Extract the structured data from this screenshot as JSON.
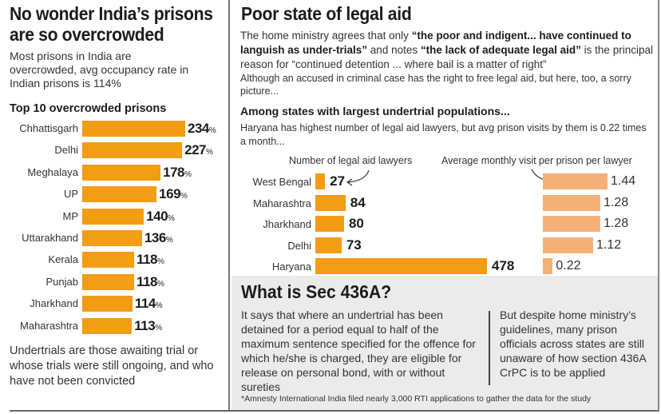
{
  "left_panel": {
    "title_line1": "No wonder India’s prisons",
    "title_line2": "are so overcrowded",
    "subtitle": "Most prisons in India are overcrowded,  avg occupancy rate in Indian prisons is 114%",
    "chart_title": "Top 10 overcrowded prisons",
    "note": "Undertrials are those awaiting trial or whose trials were still ongoing, and who have not been convicted"
  },
  "right_panel": {
    "title": "Poor state of legal aid",
    "para_plain1": "The home ministry agrees that only ",
    "para_bold1": "“the poor and indigent... have continued to languish as under-trials”",
    "para_plain2": " and notes ",
    "para_bold2": "“the lack of adequate legal aid”",
    "para_plain3": " is the principal reason for “continued detention ... where bail is a matter of right”",
    "para2": "Although an accused in criminal case has the right to free legal aid, but here, too, a sorry picture...",
    "subheading": "Among states with largest undertrial populations...",
    "subtext": "Haryana has highest number of legal aid lawyers, but avg prison visits by them is 0.22 times a month...",
    "legend_lawyers": "Number of legal aid lawyers",
    "legend_visits": "Average monthly visit per prison per lawyer"
  },
  "sec436a": {
    "title": "What is Sec 436A?",
    "col1": "It says that where an undertrial has been detained for a period equal to half of the maximum sentence specified for the offence for which he/she is charged, they are eligible for release on personal bond, with or without sureties",
    "col2": "But despite home ministry’s guidelines, many prison officials across states are still unaware of how section 436A CrPC is to be applied",
    "footnote": "*Amnesty International India filed nearly 3,000 RTI applications to gather the data for the study"
  },
  "colors": {
    "bar_orange": "#f39c16",
    "bar_light_orange": "#f5b078",
    "box_grey": "#ebebeb"
  },
  "chart_data": [
    {
      "type": "bar",
      "orientation": "horizontal",
      "title": "Top 10 overcrowded prisons",
      "xlabel": "",
      "ylabel": "",
      "unit": "%",
      "categories": [
        "Chhattisgarh",
        "Delhi",
        "Meghalaya",
        "UP",
        "MP",
        "Uttarakhand",
        "Kerala",
        "Punjab",
        "Jharkhand",
        "Maharashtra"
      ],
      "values": [
        234,
        227,
        178,
        169,
        140,
        136,
        118,
        118,
        114,
        113
      ],
      "xlim": [
        0,
        234
      ],
      "grid": false,
      "legend": "none"
    },
    {
      "type": "bar",
      "orientation": "horizontal",
      "title": "Among states with largest undertrial populations...",
      "categories": [
        "West Bengal",
        "Maharashtra",
        "Jharkhand",
        "Delhi",
        "Haryana"
      ],
      "series": [
        {
          "name": "Number of legal aid lawyers",
          "values": [
            27,
            84,
            80,
            73,
            478
          ]
        },
        {
          "name": "Average monthly visit per prison per lawyer",
          "values": [
            1.44,
            1.28,
            1.28,
            1.12,
            0.22
          ]
        }
      ],
      "grid": false,
      "legend": "top"
    }
  ]
}
